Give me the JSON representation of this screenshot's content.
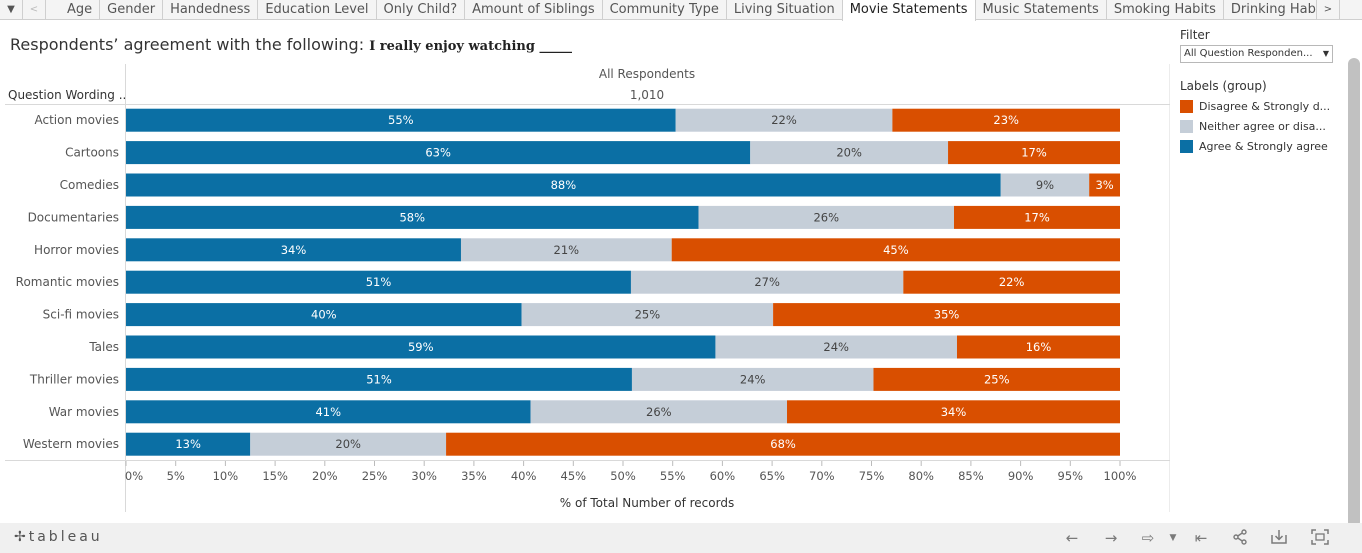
{
  "tabs": {
    "left_arrow_down": "▼",
    "left_arrow_prev": "<",
    "right_arrow": ">",
    "items": [
      "Age",
      "Gender",
      "Handedness",
      "Education Level",
      "Only Child?",
      "Amount of Siblings",
      "Community Type",
      "Living Situation",
      "Movie Statements",
      "Music Statements",
      "Smoking Habits",
      "Drinking Habits"
    ],
    "active": "Movie Statements"
  },
  "title": {
    "prefix": "Respondents’ agreement with the following:",
    "question": "I really enjoy watching _____"
  },
  "filter": {
    "label": "Filter",
    "value": "All Question Responden..."
  },
  "legend": {
    "title": "Labels (group)",
    "items": [
      {
        "label": "Disagree & Strongly d...",
        "color": "#d94f00"
      },
      {
        "label": "Neither agree or disa...",
        "color": "#c5ced8"
      },
      {
        "label": "Agree & Strongly agree",
        "color": "#0b6fa4"
      }
    ]
  },
  "chart_data": {
    "type": "bar",
    "orientation": "horizontal",
    "stacked": "100%",
    "column_header": "All Respondents",
    "column_count": "1,010",
    "row_header": "Question Wording ..",
    "categories": [
      "Action movies",
      "Cartoons",
      "Comedies",
      "Documentaries",
      "Horror movies",
      "Romantic movies",
      "Sci-fi movies",
      "Tales",
      "Thriller movies",
      "War movies",
      "Western movies"
    ],
    "series": [
      {
        "name": "Agree & Strongly agree",
        "color": "#0b6fa4",
        "values": [
          55,
          63,
          88,
          58,
          34,
          51,
          40,
          59,
          51,
          41,
          13
        ],
        "bars": [
          55.3,
          62.8,
          88.0,
          57.6,
          33.7,
          50.8,
          39.8,
          59.3,
          50.9,
          40.7,
          12.5
        ]
      },
      {
        "name": "Neither agree or disa...",
        "color": "#c5ced8",
        "values": [
          22,
          20,
          9,
          26,
          21,
          27,
          25,
          24,
          24,
          26,
          20
        ],
        "bars": [
          21.8,
          19.9,
          8.9,
          25.7,
          21.2,
          27.4,
          25.3,
          24.3,
          24.3,
          25.8,
          19.7
        ]
      },
      {
        "name": "Disagree & Strongly d...",
        "color": "#d94f00",
        "values": [
          23,
          17,
          3,
          17,
          45,
          22,
          35,
          16,
          25,
          34,
          68
        ],
        "bars": [
          22.9,
          17.3,
          3.1,
          16.7,
          45.1,
          21.8,
          34.9,
          16.4,
          24.8,
          33.5,
          67.8
        ]
      }
    ],
    "xlabel": "% of Total Number of records",
    "xlim": [
      0,
      100
    ],
    "xticks": [
      0,
      5,
      10,
      15,
      20,
      25,
      30,
      35,
      40,
      45,
      50,
      55,
      60,
      65,
      70,
      75,
      80,
      85,
      90,
      95,
      100
    ],
    "tick_suffix": "%",
    "label_suffix": "%",
    "grid": false,
    "legend_position": "right"
  },
  "footer": {
    "logo": "tableau",
    "logo_mark": "✢",
    "icons": [
      "undo-icon",
      "redo-icon",
      "revert-icon",
      "reset-icon",
      "share-icon",
      "download-icon",
      "fullscreen-icon"
    ]
  }
}
